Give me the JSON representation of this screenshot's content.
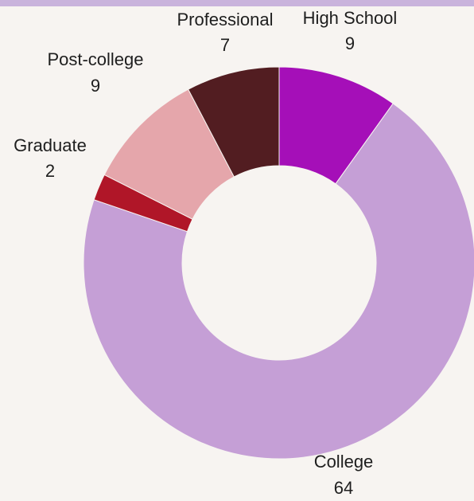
{
  "chart_data": {
    "type": "pie",
    "donut": true,
    "title": "",
    "legend": "none",
    "slices": [
      {
        "label": "High School",
        "value": 9,
        "color": "#a50fb8"
      },
      {
        "label": "College",
        "value": 64,
        "color": "#c59fd6"
      },
      {
        "label": "Graduate",
        "value": 2,
        "color": "#b01628"
      },
      {
        "label": "Post-college",
        "value": 9,
        "color": "#e5a6ab"
      },
      {
        "label": "Professional",
        "value": 7,
        "color": "#521d21"
      }
    ]
  },
  "frame": {
    "accent_bar_color": "#c9b3dc"
  }
}
